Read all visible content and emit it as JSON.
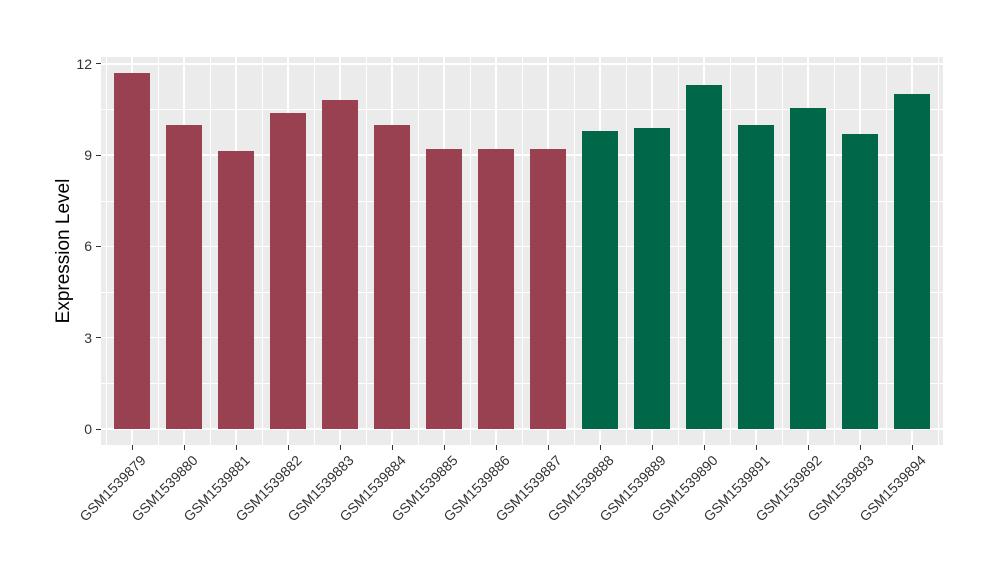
{
  "chart_data": {
    "type": "bar",
    "title": "",
    "xlabel": "",
    "ylabel": "Expression Level",
    "categories": [
      "GSM1539879",
      "GSM1539880",
      "GSM1539881",
      "GSM1539882",
      "GSM1539883",
      "GSM1539884",
      "GSM1539885",
      "GSM1539886",
      "GSM1539887",
      "GSM1539888",
      "GSM1539889",
      "GSM1539890",
      "GSM1539891",
      "GSM1539892",
      "GSM1539893",
      "GSM1539894"
    ],
    "values": [
      11.7,
      10.0,
      9.15,
      10.4,
      10.8,
      10.0,
      9.2,
      9.2,
      9.2,
      9.8,
      9.9,
      11.3,
      10.0,
      10.55,
      9.7,
      11.0
    ],
    "bar_colors": [
      "#9A4151",
      "#9A4151",
      "#9A4151",
      "#9A4151",
      "#9A4151",
      "#9A4151",
      "#9A4151",
      "#9A4151",
      "#9A4151",
      "#006849",
      "#006849",
      "#006849",
      "#006849",
      "#006849",
      "#006849",
      "#006849"
    ],
    "color_groups": {
      "group1_color": "#9A4151",
      "group1_samples": [
        "GSM1539879",
        "GSM1539880",
        "GSM1539881",
        "GSM1539882",
        "GSM1539883",
        "GSM1539884",
        "GSM1539885",
        "GSM1539886",
        "GSM1539887"
      ],
      "group2_color": "#006849",
      "group2_samples": [
        "GSM1539888",
        "GSM1539889",
        "GSM1539890",
        "GSM1539891",
        "GSM1539892",
        "GSM1539893",
        "GSM1539894"
      ]
    },
    "yticks": [
      0,
      3,
      6,
      9,
      12
    ],
    "yticks_minor": [
      1.5,
      4.5,
      7.5,
      10.5
    ],
    "ylim": [
      -0.6,
      12.3
    ],
    "grid": true,
    "legend": "none",
    "panel_bg": "#EBEBEB",
    "grid_color": "#FFFFFF",
    "axis_text_color": "#333333"
  }
}
